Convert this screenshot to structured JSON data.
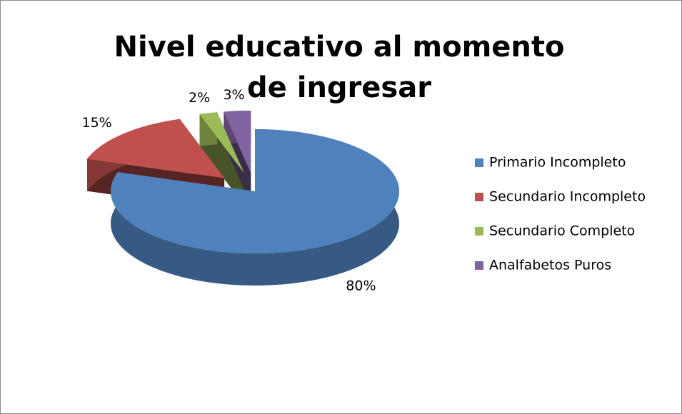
{
  "chart_data": {
    "type": "pie",
    "title": "Nivel educativo al momento de ingresar",
    "categories": [
      "Primario Incompleto",
      "Secundario Incompleto",
      "Secundario Completo",
      "Analfabetos Puros"
    ],
    "values": [
      80,
      15,
      2,
      3
    ],
    "value_labels": [
      "80%",
      "15%",
      "2%",
      "3%"
    ],
    "colors": [
      "#4f81bd",
      "#c0504d",
      "#9bbb59",
      "#8064a2"
    ],
    "legend": "right"
  }
}
